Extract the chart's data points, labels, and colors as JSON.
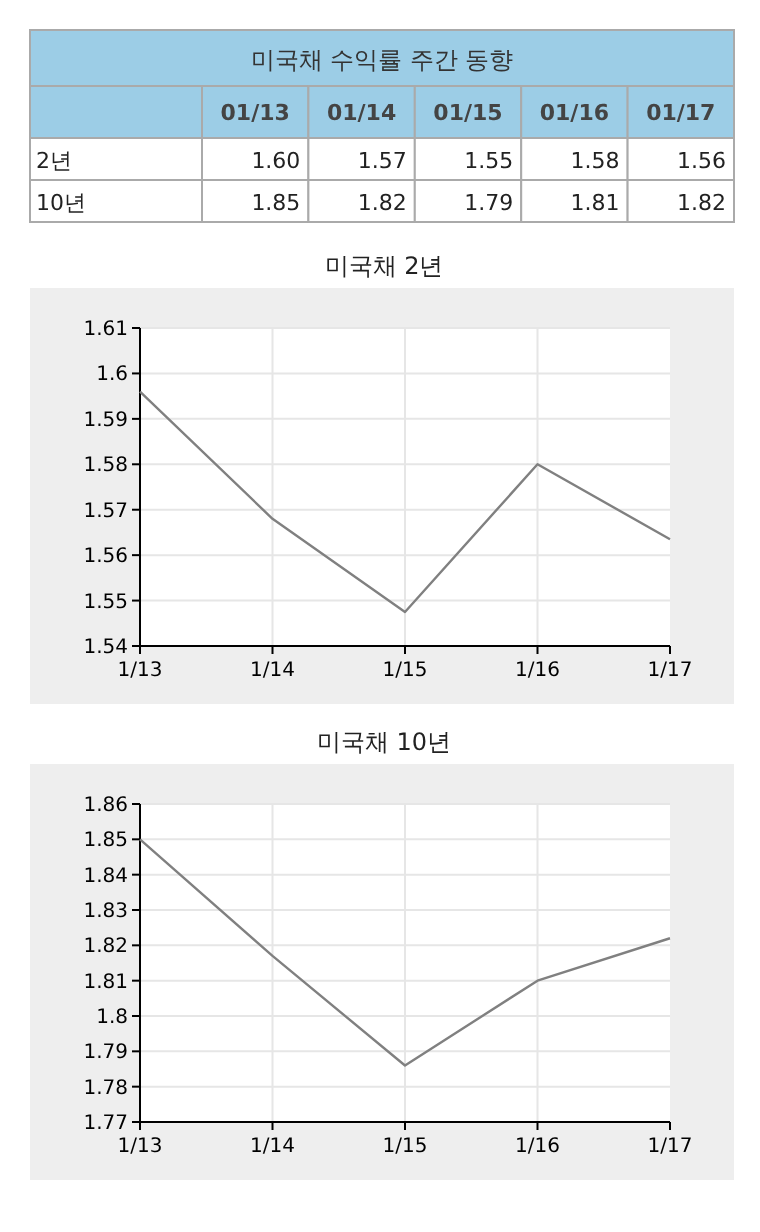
{
  "chart_data": [
    {
      "type": "other",
      "title": "미국채 수익률 주간 동향",
      "categories": [
        "01/13",
        "01/14",
        "01/15",
        "01/16",
        "01/17"
      ],
      "series": [
        {
          "name": "2년",
          "values": [
            1.6,
            1.57,
            1.55,
            1.58,
            1.56
          ],
          "value_labels": [
            "1.60",
            "1.57",
            "1.55",
            "1.58",
            "1.56"
          ]
        },
        {
          "name": "10년",
          "values": [
            1.85,
            1.82,
            1.79,
            1.81,
            1.82
          ],
          "value_labels": [
            "1.85",
            "1.82",
            "1.79",
            "1.81",
            "1.82"
          ]
        }
      ]
    },
    {
      "type": "line",
      "title": "미국채 2년",
      "categories": [
        "1/13",
        "1/14",
        "1/15",
        "1/16",
        "1/17"
      ],
      "values": [
        1.596,
        1.568,
        1.5475,
        1.58,
        1.5635
      ],
      "color": "#808080",
      "ylim": [
        1.54,
        1.61
      ],
      "yticks": [
        1.54,
        1.55,
        1.56,
        1.57,
        1.58,
        1.59,
        1.6,
        1.61
      ],
      "grid": true
    },
    {
      "type": "line",
      "title": "미국채 10년",
      "categories": [
        "1/13",
        "1/14",
        "1/15",
        "1/16",
        "1/17"
      ],
      "values": [
        1.85,
        1.817,
        1.786,
        1.81,
        1.822
      ],
      "color": "#808080",
      "ylim": [
        1.77,
        1.86
      ],
      "yticks": [
        1.77,
        1.78,
        1.79,
        1.8,
        1.81,
        1.82,
        1.83,
        1.84,
        1.85,
        1.86
      ],
      "grid": true
    }
  ]
}
